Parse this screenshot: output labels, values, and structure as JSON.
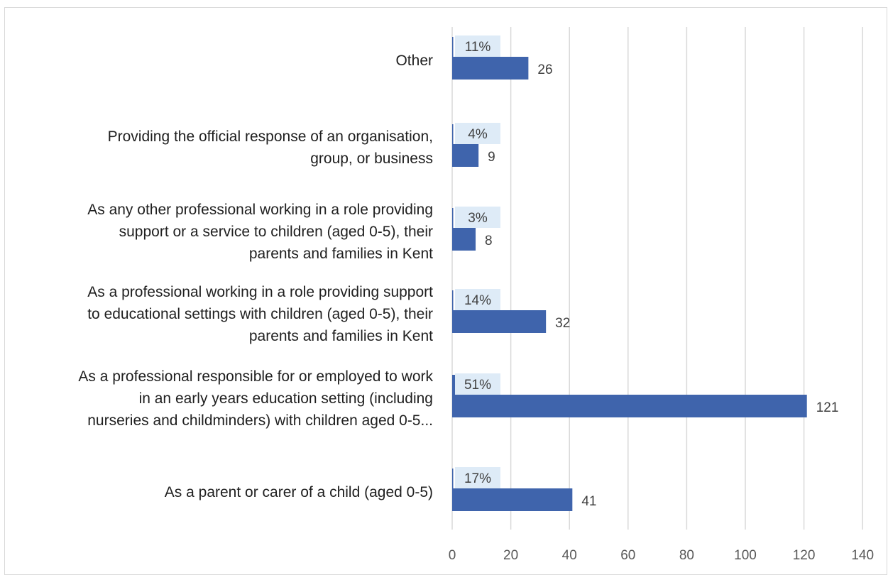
{
  "chart_data": {
    "type": "bar",
    "orientation": "horizontal",
    "categories": [
      "As a parent or carer of a child (aged 0-5)",
      "As a professional responsible for or employed to work in an early years education setting (including nurseries and childminders) with children aged 0-5...",
      "As a professional working in a role providing support to educational settings with children (aged 0-5), their parents and families in Kent",
      "As any other professional working in a role providing support or a service to children (aged 0-5), their parents and families in Kent",
      "Providing the official response of an organisation, group, or business",
      "Other"
    ],
    "category_lines": [
      [
        "As a parent or carer of a child (aged 0-5)"
      ],
      [
        "As a professional responsible for or employed to work",
        "in an early years education setting (including",
        "nurseries and childminders) with children aged 0-5..."
      ],
      [
        "As a professional working in a role providing support",
        "to educational settings with children (aged 0-5), their",
        "parents and families in Kent"
      ],
      [
        "As any other professional working in a role providing",
        "support or a service to children (aged 0-5), their",
        "parents and families in Kent"
      ],
      [
        "Providing the official response of an organisation,",
        "group, or business"
      ],
      [
        "Other"
      ]
    ],
    "series": [
      {
        "values": [
          41,
          121,
          32,
          8,
          9,
          26
        ]
      },
      {
        "values": [
          17,
          51,
          14,
          3,
          4,
          11
        ],
        "labels": [
          "17%",
          "51%",
          "14%",
          "3%",
          "4%",
          "11%"
        ]
      }
    ],
    "xlim": [
      0,
      140
    ],
    "xticks": [
      0,
      20,
      40,
      60,
      80,
      100,
      120,
      140
    ],
    "grid": true,
    "legend": "none",
    "colors": {
      "bar": "#3f64ac",
      "grid": "#d9d9d9",
      "label_box": "#deebf7"
    }
  }
}
